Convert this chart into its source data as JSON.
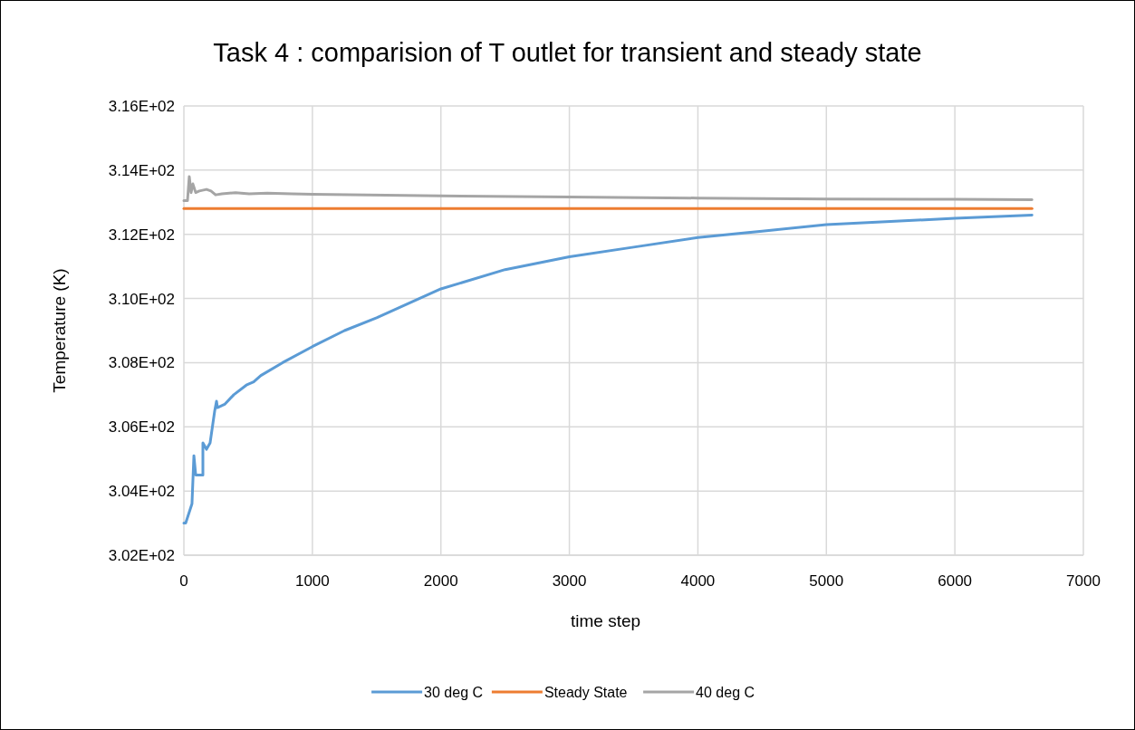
{
  "chart_data": {
    "type": "line",
    "title": "Task 4 : comparision of T outlet for transient and steady state",
    "xlabel": "time step",
    "ylabel": "Temperature (K)",
    "xlim": [
      0,
      7000
    ],
    "xticks": [
      0,
      1000,
      2000,
      3000,
      4000,
      5000,
      6000,
      7000
    ],
    "ylim": [
      302,
      316
    ],
    "yticks": [
      {
        "value": 302,
        "label": "3.02E+02"
      },
      {
        "value": 304,
        "label": "3.04E+02"
      },
      {
        "value": 306,
        "label": "3.06E+02"
      },
      {
        "value": 308,
        "label": "3.08E+02"
      },
      {
        "value": 310,
        "label": "3.10E+02"
      },
      {
        "value": 312,
        "label": "3.12E+02"
      },
      {
        "value": 314,
        "label": "3.14E+02"
      },
      {
        "value": 316,
        "label": "3.16E+02"
      }
    ],
    "grid": true,
    "legend": "bottom",
    "marker": "none",
    "line_style": "solid",
    "series": [
      {
        "name": "30 deg C",
        "color": "#5b9bd5",
        "x": [
          0,
          14,
          63,
          78,
          92,
          148,
          148,
          176,
          204,
          240,
          254,
          261,
          317,
          388,
          486,
          543,
          599,
          768,
          1000,
          1250,
          1500,
          2000,
          2500,
          3000,
          3500,
          4000,
          4500,
          5000,
          5500,
          6000,
          6600
        ],
        "values": [
          303.0,
          303.0,
          303.6,
          305.1,
          304.5,
          304.5,
          305.5,
          305.3,
          305.5,
          306.5,
          306.8,
          306.6,
          306.7,
          307.0,
          307.3,
          307.4,
          307.6,
          308.0,
          308.5,
          309.0,
          309.4,
          310.3,
          310.9,
          311.3,
          311.6,
          311.9,
          312.1,
          312.3,
          312.4,
          312.5,
          312.6
        ]
      },
      {
        "name": "Steady State",
        "color": "#ed7d31",
        "x": [
          0,
          6600
        ],
        "values": [
          312.8,
          312.8
        ]
      },
      {
        "name": "40 deg C",
        "color": "#a5a5a5",
        "x": [
          0,
          28,
          42,
          56,
          70,
          92,
          120,
          176,
          211,
          247,
          296,
          402,
          508,
          649,
          839,
          1000,
          2000,
          3000,
          4000,
          5000,
          6000,
          6600
        ],
        "values": [
          313.05,
          313.05,
          313.8,
          313.3,
          313.57,
          313.3,
          313.35,
          313.4,
          313.35,
          313.23,
          313.26,
          313.3,
          313.26,
          313.28,
          313.26,
          313.25,
          313.2,
          313.16,
          313.13,
          313.1,
          313.09,
          313.08
        ]
      }
    ]
  }
}
